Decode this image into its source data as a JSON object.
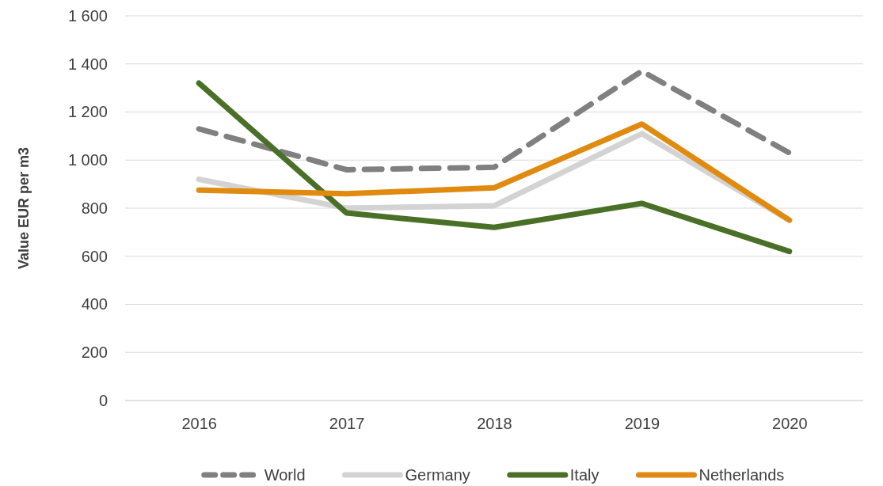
{
  "chart_data": {
    "type": "line",
    "ylabel": "Value EUR per m3",
    "categories": [
      "2016",
      "2017",
      "2018",
      "2019",
      "2020"
    ],
    "series": [
      {
        "name": "World",
        "color": "#808080",
        "line_style": "dashed",
        "values": [
          1130,
          960,
          970,
          1370,
          1030
        ]
      },
      {
        "name": "Germany",
        "color": "#d3d3d3",
        "values": [
          920,
          800,
          810,
          1110,
          750
        ]
      },
      {
        "name": "Italy",
        "color": "#4a7028",
        "values": [
          1320,
          780,
          720,
          820,
          620
        ]
      },
      {
        "name": "Netherlands",
        "color": "#e08a10",
        "values": [
          875,
          860,
          885,
          1150,
          750
        ]
      }
    ],
    "ylim": [
      0,
      1600
    ],
    "yticks": [
      {
        "value": 0,
        "label": "0"
      },
      {
        "value": 200,
        "label": "200"
      },
      {
        "value": 400,
        "label": "400"
      },
      {
        "value": 600,
        "label": "600"
      },
      {
        "value": 800,
        "label": "800"
      },
      {
        "value": 1000,
        "label": "1 000"
      },
      {
        "value": 1200,
        "label": "1 200"
      },
      {
        "value": 1400,
        "label": "1 400"
      },
      {
        "value": 1600,
        "label": "1 600"
      }
    ],
    "grid": "y",
    "legend": "bottom",
    "marker": "none"
  }
}
